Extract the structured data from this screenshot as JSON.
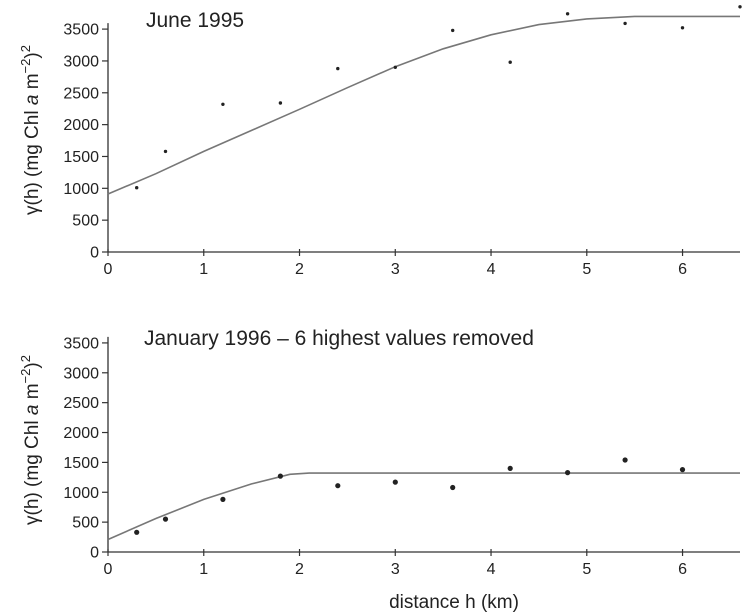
{
  "chart_data": [
    {
      "type": "scatter",
      "title": "June 1995",
      "ylabel_main": "γ(h) (mg Chl ",
      "ylabel_italic": "a",
      "ylabel_unit": " m",
      "ylabel_sup1": "−2",
      "ylabel_close": ")",
      "ylabel_sup2": "2",
      "xlim": [
        0,
        6.6
      ],
      "ylim": [
        0,
        3800
      ],
      "xticks": [
        0,
        1,
        2,
        3,
        4,
        5,
        6
      ],
      "yticks": [
        0,
        500,
        1000,
        1500,
        2000,
        2500,
        3000,
        3500
      ],
      "points": [
        {
          "x": 0.3,
          "y": 1010
        },
        {
          "x": 0.6,
          "y": 1580
        },
        {
          "x": 1.2,
          "y": 2320
        },
        {
          "x": 1.8,
          "y": 2340
        },
        {
          "x": 2.4,
          "y": 2880
        },
        {
          "x": 3.0,
          "y": 2900
        },
        {
          "x": 3.6,
          "y": 3480
        },
        {
          "x": 4.2,
          "y": 2980
        },
        {
          "x": 4.8,
          "y": 3740
        },
        {
          "x": 5.4,
          "y": 3590
        },
        {
          "x": 6.0,
          "y": 3520
        },
        {
          "x": 6.6,
          "y": 3850
        }
      ],
      "fit_line": [
        {
          "x": 0,
          "y": 910
        },
        {
          "x": 0.5,
          "y": 1230
        },
        {
          "x": 1,
          "y": 1580
        },
        {
          "x": 1.5,
          "y": 1910
        },
        {
          "x": 2,
          "y": 2240
        },
        {
          "x": 2.5,
          "y": 2580
        },
        {
          "x": 3,
          "y": 2910
        },
        {
          "x": 3.5,
          "y": 3190
        },
        {
          "x": 4,
          "y": 3410
        },
        {
          "x": 4.5,
          "y": 3570
        },
        {
          "x": 5,
          "y": 3660
        },
        {
          "x": 5.5,
          "y": 3700
        },
        {
          "x": 6.6,
          "y": 3700
        }
      ]
    },
    {
      "type": "scatter",
      "title": "January 1996 – 6 highest values removed",
      "ylabel_main": "γ(h) (mg Chl ",
      "ylabel_italic": "a",
      "ylabel_unit": " m",
      "ylabel_sup1": "−2",
      "ylabel_close": ")",
      "ylabel_sup2": "2",
      "xlabel": "distance h (km)",
      "xlim": [
        0,
        6.6
      ],
      "ylim": [
        0,
        3800
      ],
      "xticks": [
        0,
        1,
        2,
        3,
        4,
        5,
        6
      ],
      "yticks": [
        0,
        500,
        1000,
        1500,
        2000,
        2500,
        3000,
        3500
      ],
      "points": [
        {
          "x": 0.3,
          "y": 330
        },
        {
          "x": 0.6,
          "y": 550
        },
        {
          "x": 1.2,
          "y": 880
        },
        {
          "x": 1.8,
          "y": 1270
        },
        {
          "x": 2.4,
          "y": 1110
        },
        {
          "x": 3.0,
          "y": 1170
        },
        {
          "x": 3.6,
          "y": 1080
        },
        {
          "x": 4.2,
          "y": 1400
        },
        {
          "x": 4.8,
          "y": 1330
        },
        {
          "x": 5.4,
          "y": 1540
        },
        {
          "x": 6.0,
          "y": 1380
        }
      ],
      "fit_line": [
        {
          "x": 0,
          "y": 210
        },
        {
          "x": 0.5,
          "y": 560
        },
        {
          "x": 1,
          "y": 880
        },
        {
          "x": 1.5,
          "y": 1140
        },
        {
          "x": 1.9,
          "y": 1300
        },
        {
          "x": 2.1,
          "y": 1320
        },
        {
          "x": 6.6,
          "y": 1320
        }
      ]
    }
  ]
}
